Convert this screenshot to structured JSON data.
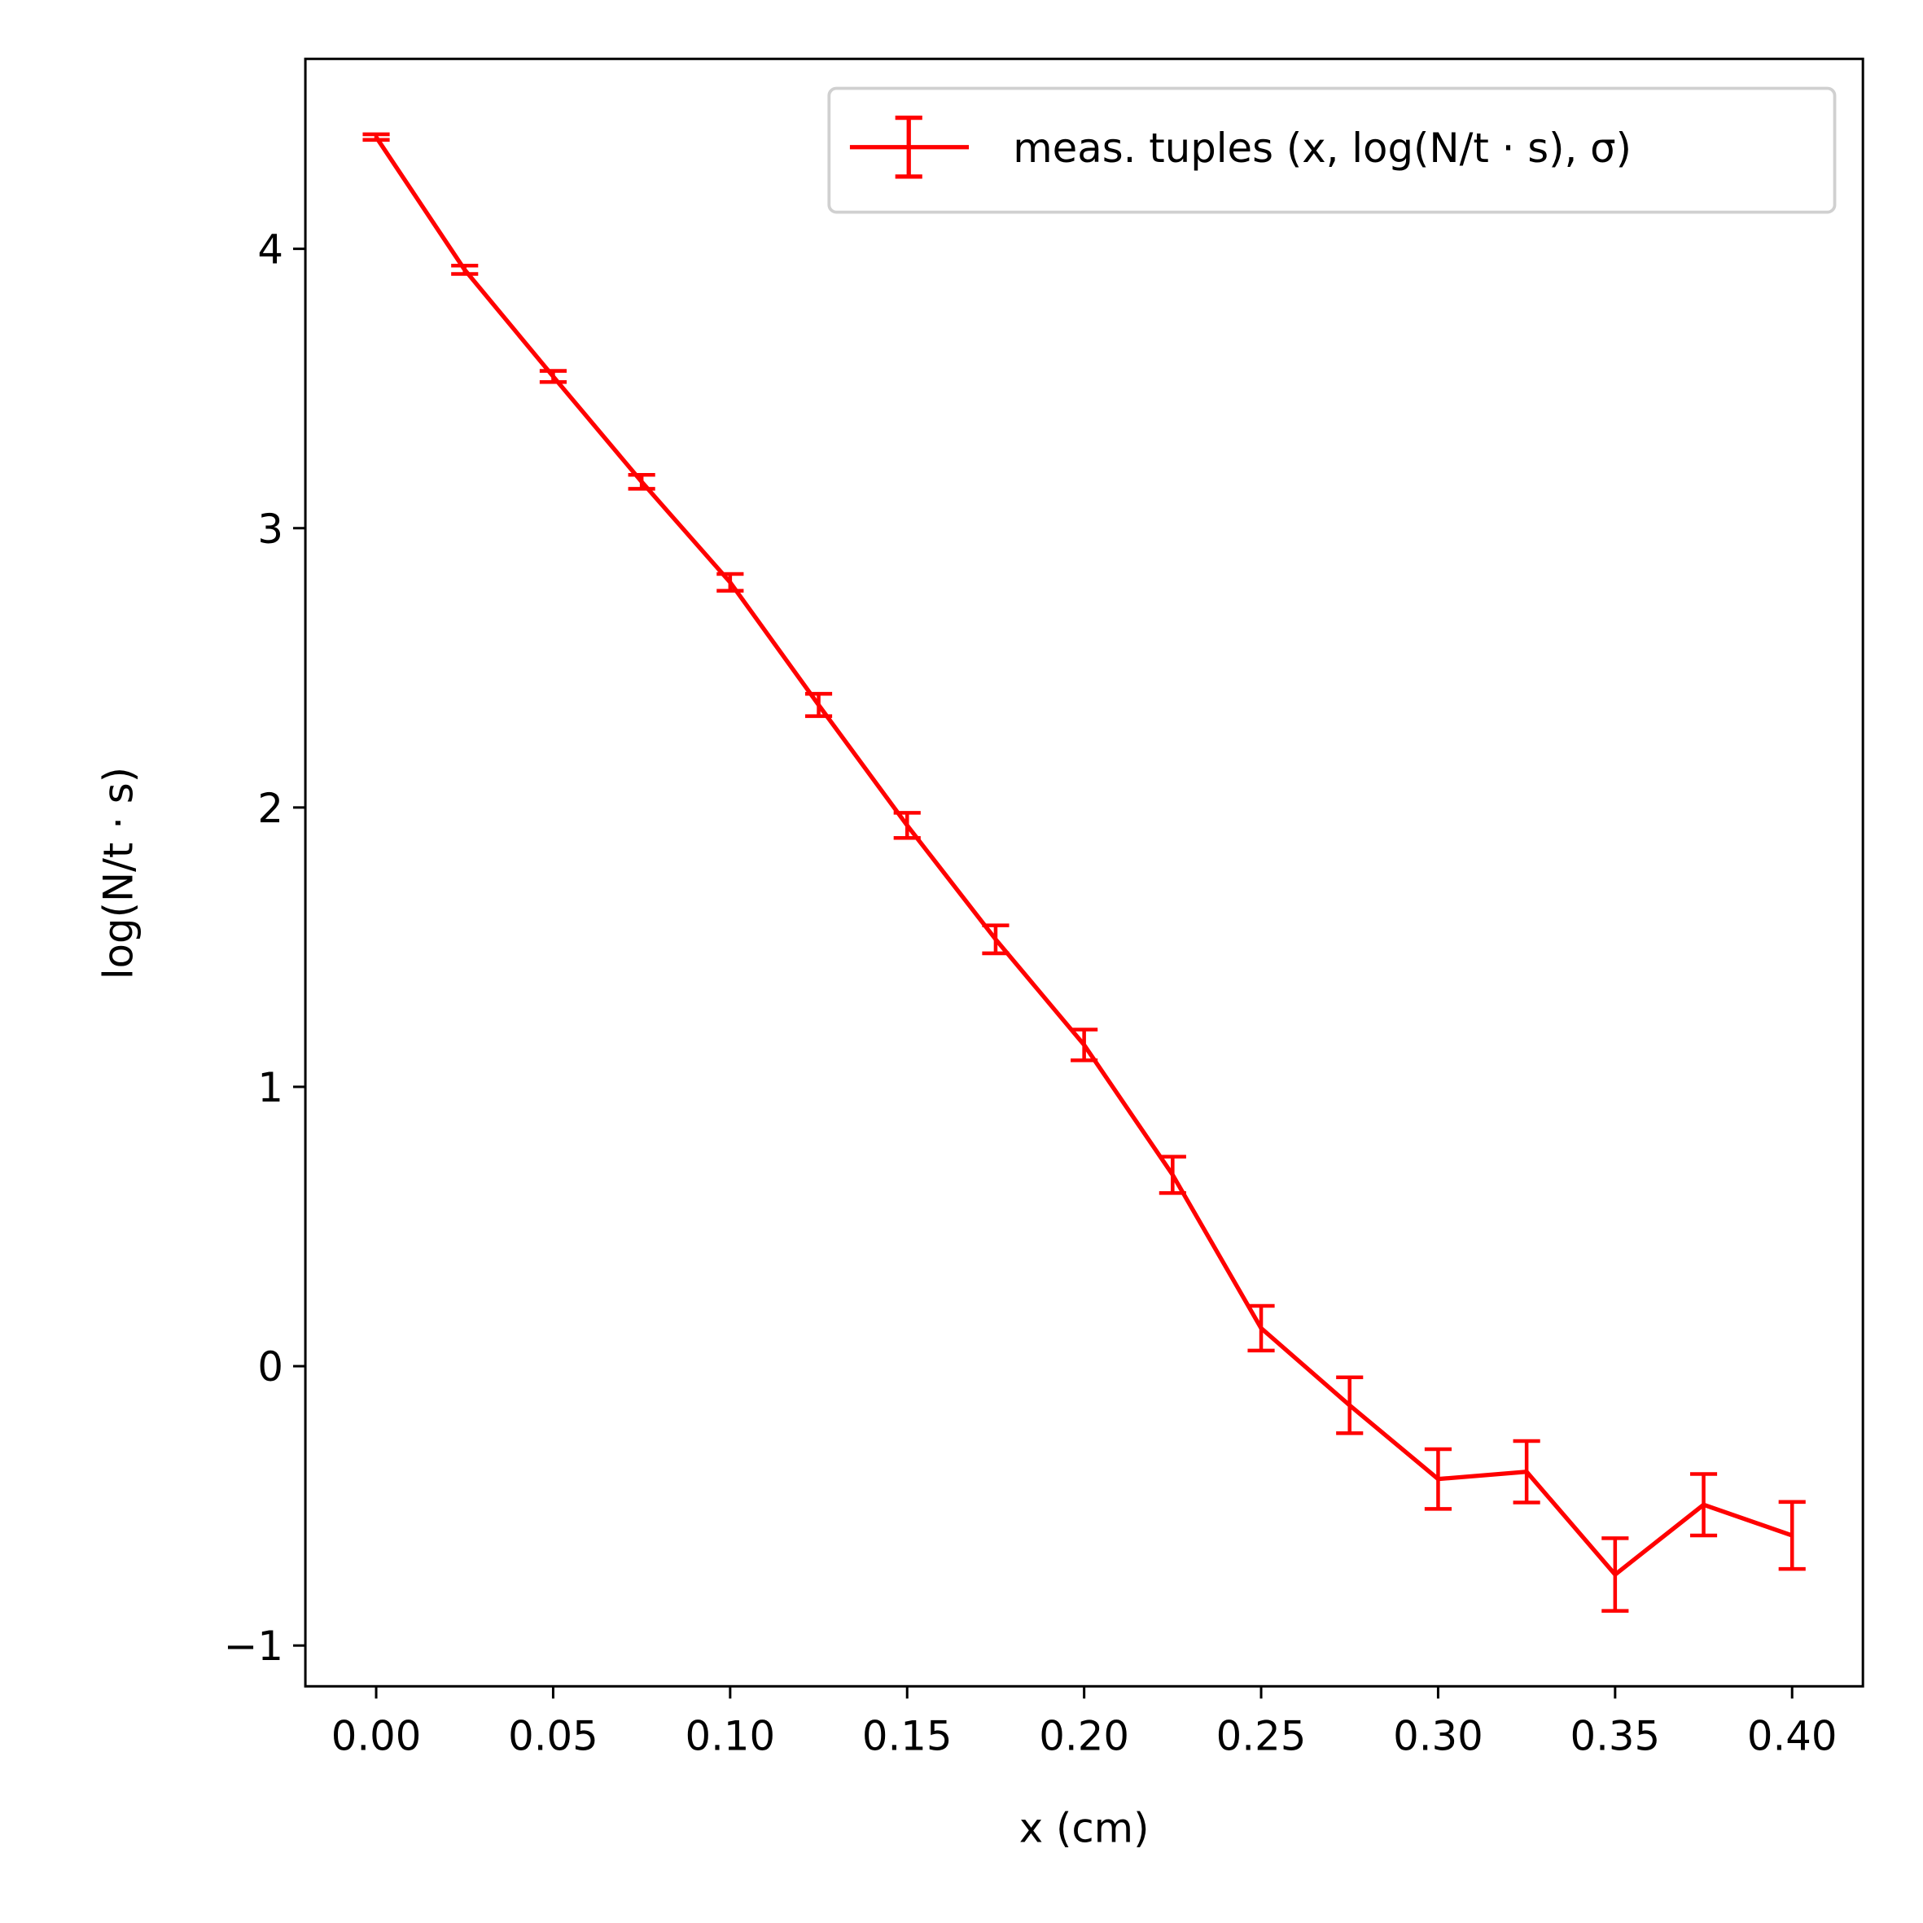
{
  "chart_data": {
    "type": "errorbar",
    "xlabel": "x (cm)",
    "ylabel": "log(N/t · s)",
    "x": [
      0.0,
      0.025,
      0.05,
      0.075,
      0.1,
      0.125,
      0.15,
      0.175,
      0.2,
      0.225,
      0.25,
      0.275,
      0.3,
      0.325,
      0.35,
      0.375,
      0.4
    ],
    "series": [
      {
        "name": "meas. tuples (x, log(N/t · s), σ)",
        "color": "#ff0000",
        "values": [
          4.4,
          3.925,
          3.543,
          3.166,
          2.806,
          2.367,
          1.936,
          1.528,
          1.15,
          0.685,
          0.136,
          -0.14,
          -0.404,
          -0.378,
          -0.746,
          -0.496,
          -0.606
        ],
        "errors": [
          0.01,
          0.015,
          0.02,
          0.025,
          0.03,
          0.04,
          0.045,
          0.05,
          0.055,
          0.065,
          0.08,
          0.1,
          0.107,
          0.11,
          0.13,
          0.11,
          0.12
        ]
      }
    ],
    "xlim": [
      -0.02,
      0.42
    ],
    "ylim": [
      -1.146,
      4.68
    ],
    "xticks": [
      {
        "value": 0,
        "label": "0.00"
      },
      {
        "value": 0.05,
        "label": "0.05"
      },
      {
        "value": 0.1,
        "label": "0.10"
      },
      {
        "value": 0.15,
        "label": "0.15"
      },
      {
        "value": 0.2,
        "label": "0.20"
      },
      {
        "value": 0.25,
        "label": "0.25"
      },
      {
        "value": 0.3,
        "label": "0.30"
      },
      {
        "value": 0.35,
        "label": "0.35"
      },
      {
        "value": 0.4,
        "label": "0.40"
      }
    ],
    "yticks": [
      {
        "value": -1,
        "label": "−1"
      },
      0,
      1,
      2,
      3,
      4
    ],
    "legend": "upper right"
  }
}
